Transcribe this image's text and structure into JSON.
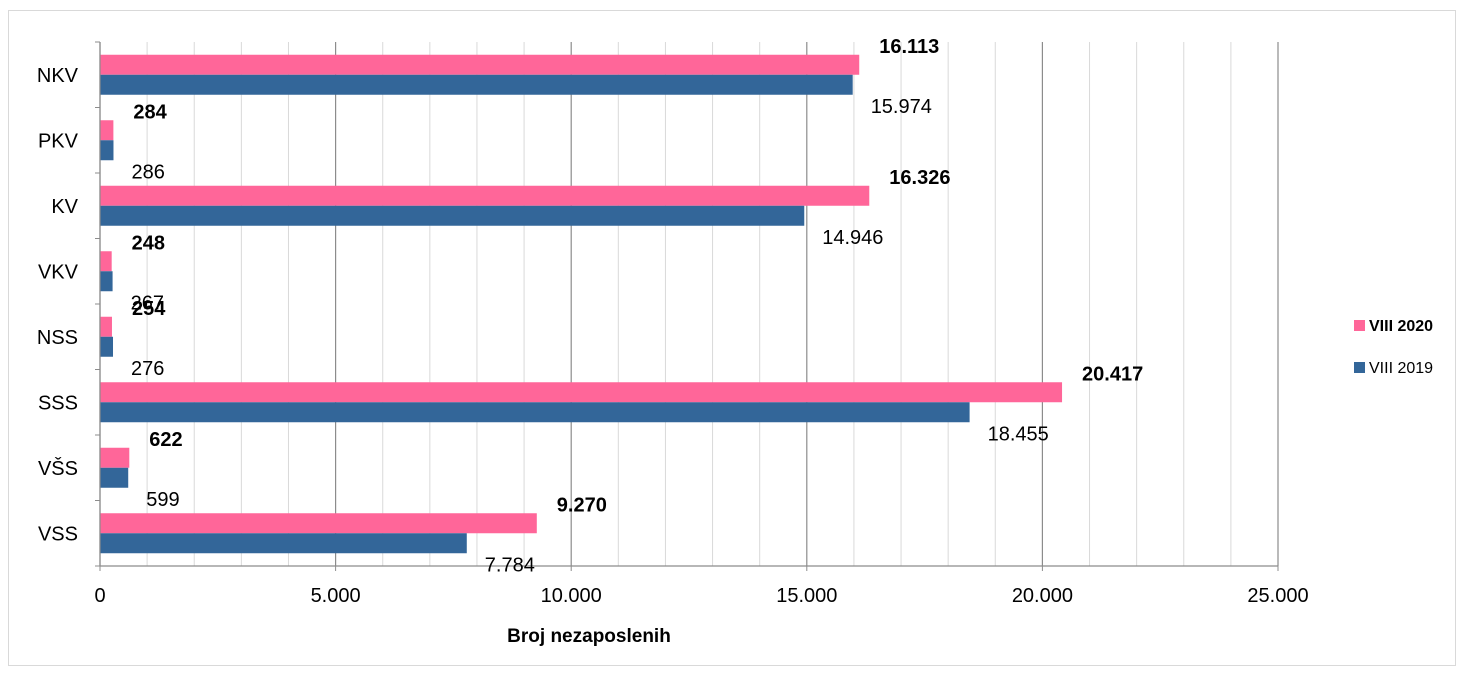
{
  "chart_data": {
    "type": "bar",
    "orientation": "horizontal",
    "categories": [
      "NKV",
      "PKV",
      "KV",
      "VKV",
      "NSS",
      "SSS",
      "VŠS",
      "VSS"
    ],
    "series": [
      {
        "name": "VIII 2020",
        "color": "#ff6699",
        "values": [
          16113,
          284,
          16326,
          248,
          254,
          20417,
          622,
          9270
        ],
        "labels": [
          "16.113",
          "284",
          "16.326",
          "248",
          "254",
          "20.417",
          "622",
          "9.270"
        ]
      },
      {
        "name": "VIII 2019",
        "color": "#336699",
        "values": [
          15974,
          286,
          14946,
          267,
          276,
          18455,
          599,
          7784
        ],
        "labels": [
          "15.974",
          "286",
          "14.946",
          "267",
          "276",
          "18.455",
          "599",
          "7.784"
        ]
      }
    ],
    "xlabel": "Broj nezaposlenih",
    "xlim": [
      0,
      25000
    ],
    "xticks": [
      0,
      5000,
      10000,
      15000,
      20000,
      25000
    ],
    "xtick_labels": [
      "0",
      "5.000",
      "10.000",
      "15.000",
      "20.000",
      "25.000"
    ],
    "minor_gridlines": true,
    "legend_position": "right"
  }
}
